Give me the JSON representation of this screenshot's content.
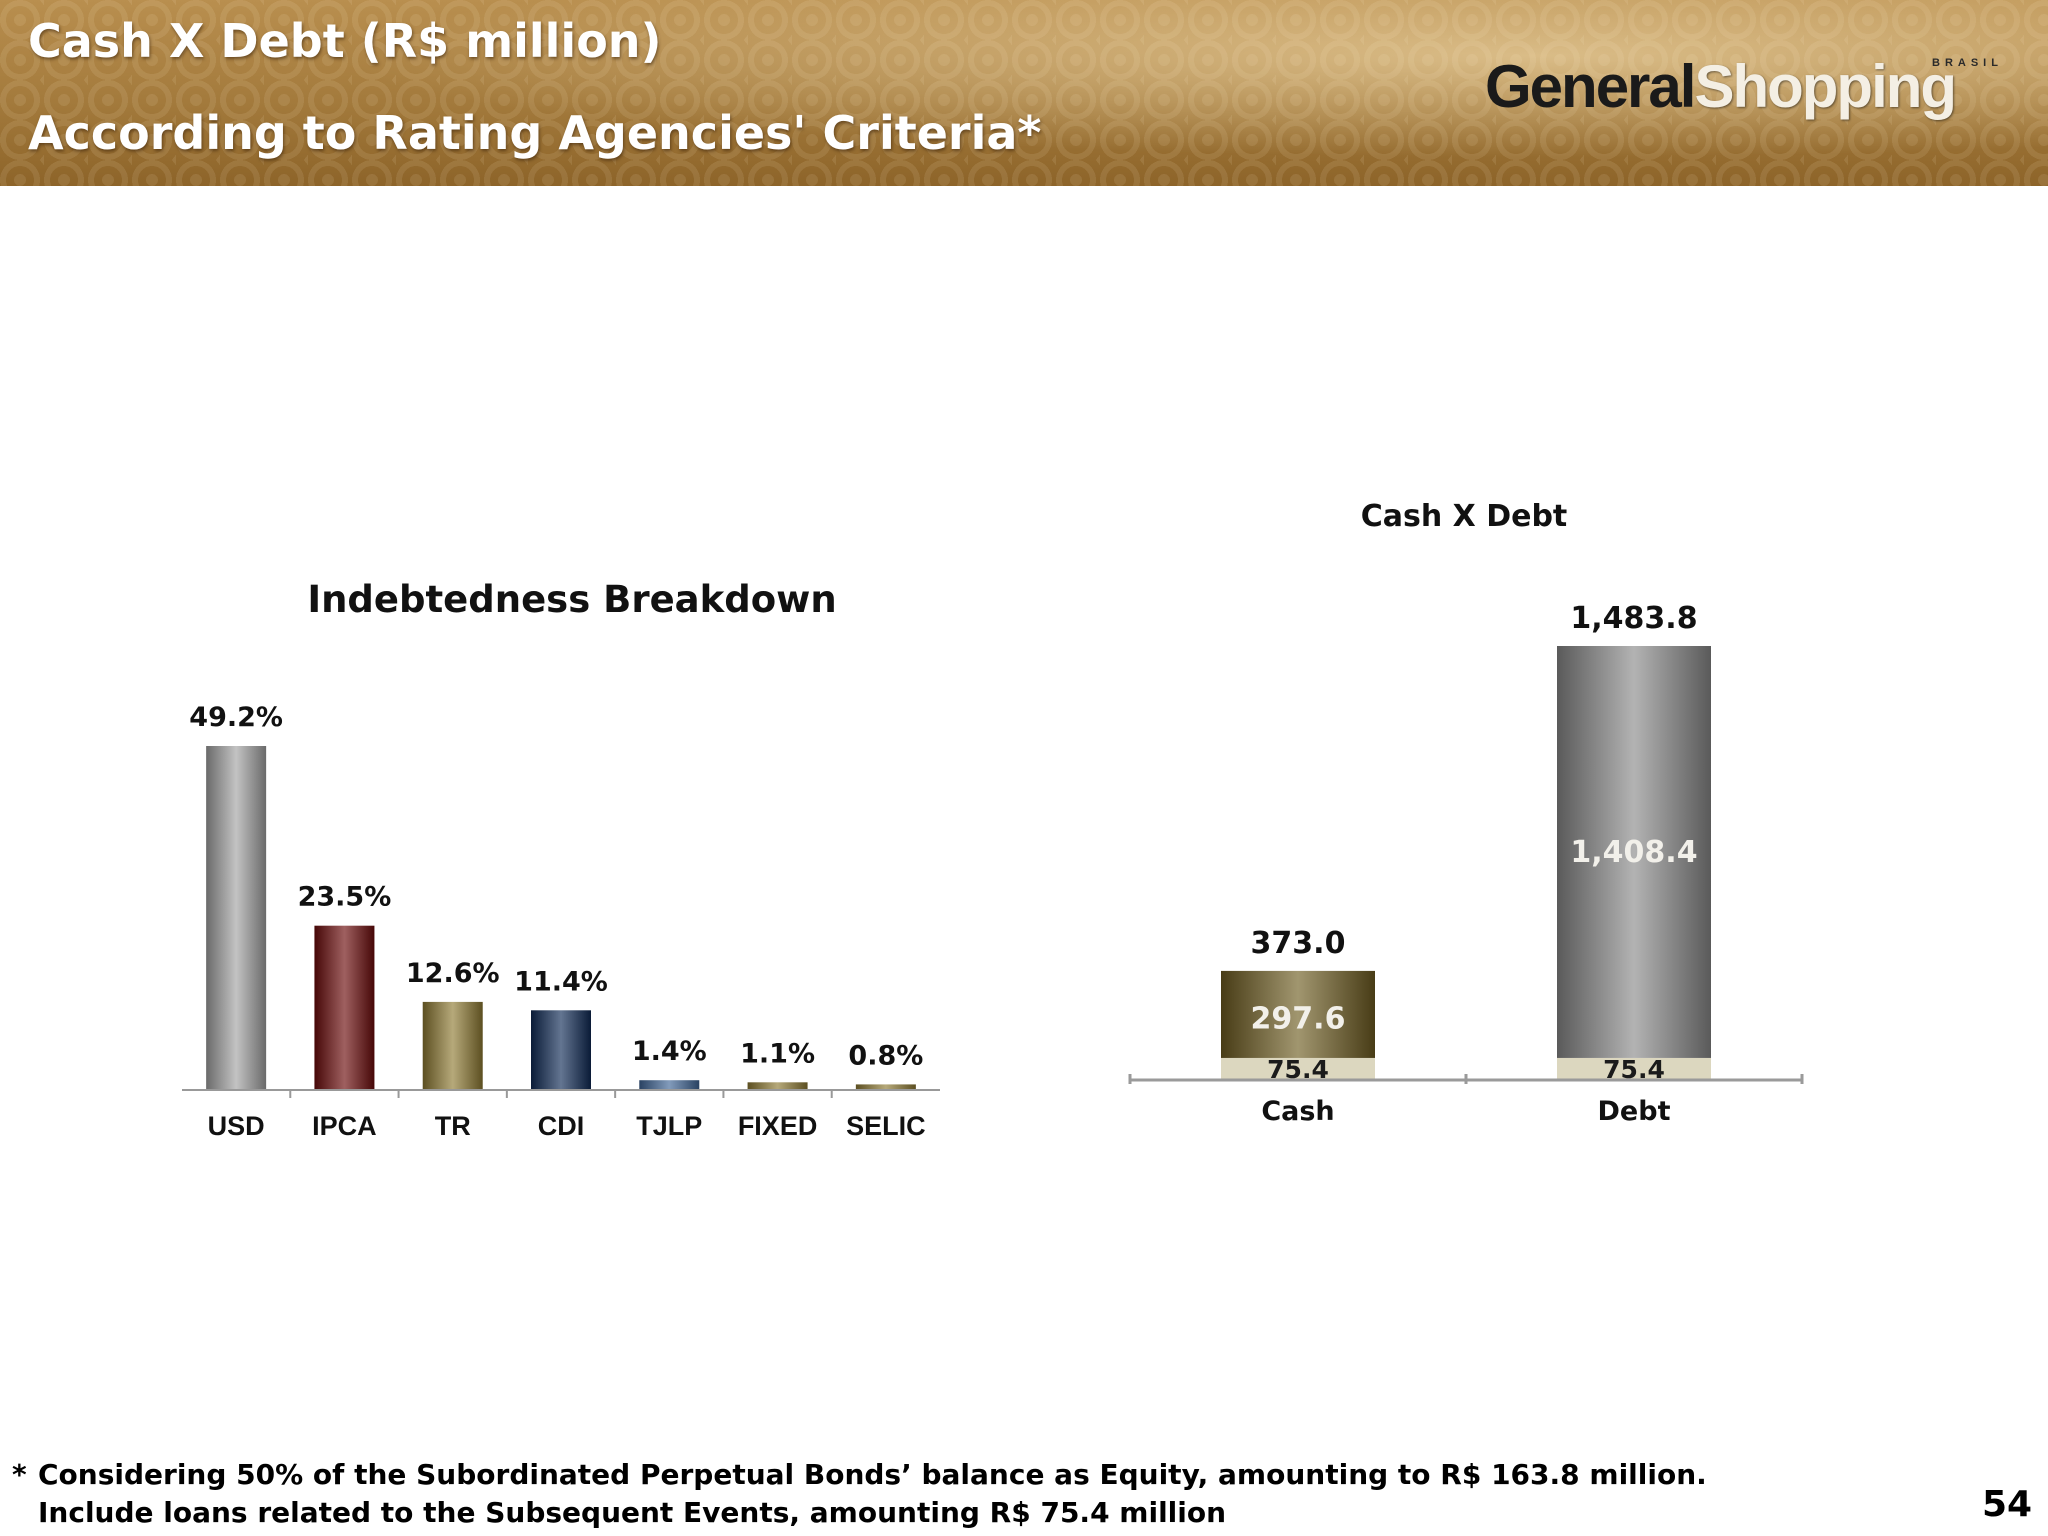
{
  "header": {
    "title": "Cash X Debt (R$ million)",
    "subtitle": "According to Rating Agencies' Criteria*",
    "logo_main": "General",
    "logo_accent": "Shopping",
    "logo_small": "BRASIL"
  },
  "chart_data": [
    {
      "type": "bar",
      "title": "Indebtedness Breakdown",
      "categories": [
        "USD",
        "IPCA",
        "TR",
        "CDI",
        "TJLP",
        "FIXED",
        "SELIC"
      ],
      "values": [
        49.2,
        23.5,
        12.6,
        11.4,
        1.4,
        1.1,
        0.8
      ],
      "value_labels": [
        "49.2%",
        "23.5%",
        "12.6%",
        "11.4%",
        "1.4%",
        "1.1%",
        "0.8%"
      ],
      "colors": [
        "#a3a3a3",
        "#6b0a0a",
        "#8e7a33",
        "#0f2a55",
        "#3f6597",
        "#8e7a33",
        "#8e7a33"
      ],
      "xlabel": "",
      "ylabel": "",
      "grid": false
    },
    {
      "type": "bar",
      "stacked": true,
      "title": "Cash  X Debt",
      "categories": [
        "Cash",
        "Debt"
      ],
      "series": [
        {
          "values": [
            75.4,
            75.4
          ],
          "labels": [
            "75.4",
            "75.4"
          ],
          "colors": [
            "#dcd7bf",
            "#dcd7bf"
          ]
        },
        {
          "values": [
            297.6,
            1408.4
          ],
          "labels": [
            "297.6",
            "1,408.4"
          ],
          "colors": [
            "#6f5d22",
            "#8a8a8a"
          ]
        }
      ],
      "totals": [
        373.0,
        1483.8
      ],
      "total_labels": [
        "373.0",
        "1,483.8"
      ],
      "xlabel": "",
      "ylabel": "",
      "grid": false
    }
  ],
  "footnote": {
    "marker": "*",
    "line1": "Considering 50% of the Subordinated Perpetual Bonds’ balance as Equity, amounting to R$ 163.8 million.",
    "line2": "Include loans related to the Subsequent Events, amounting R$ 75.4 million"
  },
  "page_number": "54"
}
